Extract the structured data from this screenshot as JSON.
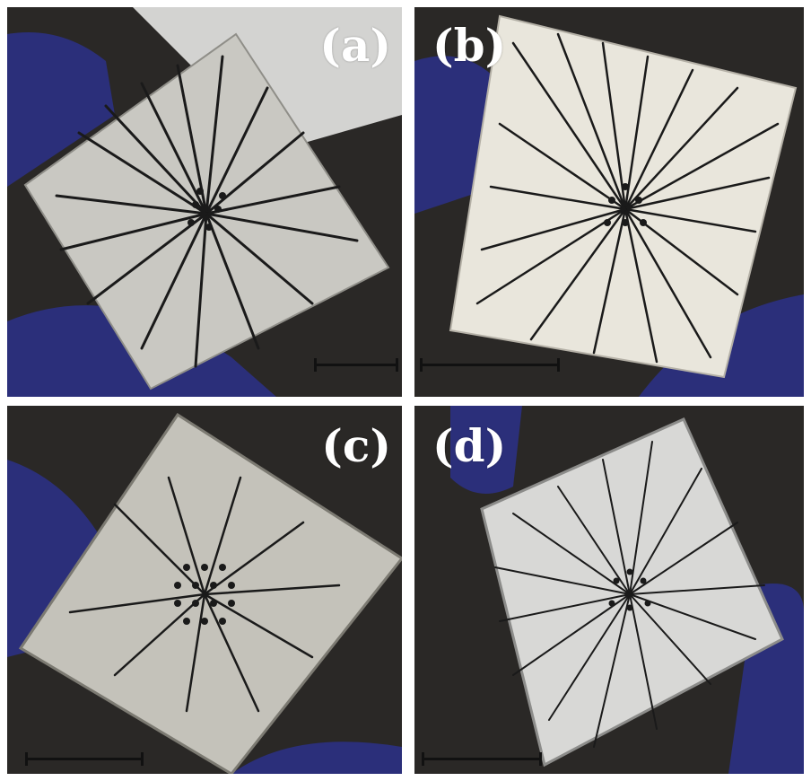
{
  "panels": [
    {
      "label": "(a)"
    },
    {
      "label": "(b)"
    },
    {
      "label": "(c)"
    },
    {
      "label": "(d)"
    }
  ],
  "colors": {
    "background": "#2a2826",
    "glove": "#2b2f7a",
    "chip_a": "#c9c8c2",
    "chip_b": "#e9e6dc",
    "chip_c": "#c4c2ba",
    "chip_d": "#d8d8d6",
    "trace": "#1a1a1a",
    "scale_bar": "#111111",
    "label": "#ffffff"
  }
}
